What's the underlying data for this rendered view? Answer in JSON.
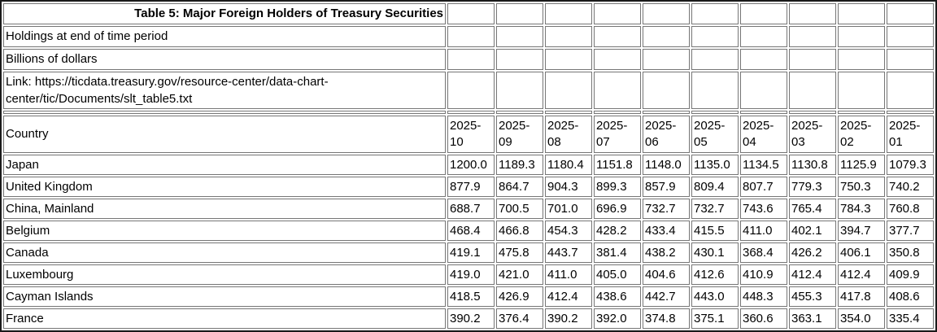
{
  "table": {
    "title": "Table 5: Major Foreign Holders of Treasury Securities",
    "meta_rows": [
      "Holdings at end of time period",
      "Billions of dollars",
      "Link: https://ticdata.treasury.gov/resource-center/data-chart-center/tic/Documents/slt_table5.txt"
    ],
    "header": {
      "country_label": "Country",
      "periods": [
        "2025-10",
        "2025-09",
        "2025-08",
        "2025-07",
        "2025-06",
        "2025-05",
        "2025-04",
        "2025-03",
        "2025-02",
        "2025-01"
      ]
    },
    "rows": [
      {
        "country": "Japan",
        "values": [
          "1200.0",
          "1189.3",
          "1180.4",
          "1151.8",
          "1148.0",
          "1135.0",
          "1134.5",
          "1130.8",
          "1125.9",
          "1079.3"
        ]
      },
      {
        "country": "United Kingdom",
        "values": [
          "877.9",
          "864.7",
          "904.3",
          "899.3",
          "857.9",
          "809.4",
          "807.7",
          "779.3",
          "750.3",
          "740.2"
        ]
      },
      {
        "country": "China, Mainland",
        "values": [
          "688.7",
          "700.5",
          "701.0",
          "696.9",
          "732.7",
          "732.7",
          "743.6",
          "765.4",
          "784.3",
          "760.8"
        ]
      },
      {
        "country": "Belgium",
        "values": [
          "468.4",
          "466.8",
          "454.3",
          "428.2",
          "433.4",
          "415.5",
          "411.0",
          "402.1",
          "394.7",
          "377.7"
        ]
      },
      {
        "country": "Canada",
        "values": [
          "419.1",
          "475.8",
          "443.7",
          "381.4",
          "438.2",
          "430.1",
          "368.4",
          "426.2",
          "406.1",
          "350.8"
        ]
      },
      {
        "country": "Luxembourg",
        "values": [
          "419.0",
          "421.0",
          "411.0",
          "405.0",
          "404.6",
          "412.6",
          "410.9",
          "412.4",
          "412.4",
          "409.9"
        ]
      },
      {
        "country": "Cayman Islands",
        "values": [
          "418.5",
          "426.9",
          "412.4",
          "438.6",
          "442.7",
          "443.0",
          "448.3",
          "455.3",
          "417.8",
          "408.6"
        ]
      },
      {
        "country": "France",
        "values": [
          "390.2",
          "376.4",
          "390.2",
          "392.0",
          "374.8",
          "375.1",
          "360.6",
          "363.1",
          "354.0",
          "335.4"
        ]
      }
    ],
    "colors": {
      "text": "#000000",
      "cell_border": "#767676",
      "outer_border": "#1a1a1a",
      "background": "#ffffff"
    }
  }
}
